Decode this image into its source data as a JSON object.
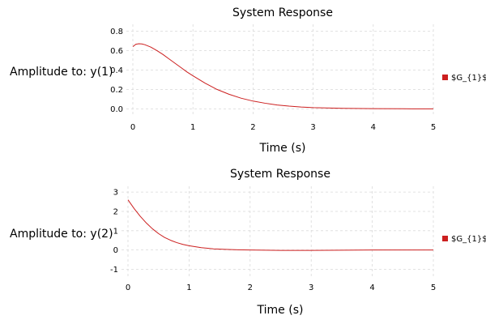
{
  "chart_data": [
    {
      "type": "line",
      "title": "System Response",
      "xlabel": "Time (s)",
      "ylabel": "Amplitude to: y(1)",
      "xlim": [
        0,
        5
      ],
      "ylim": [
        -0.08,
        0.87
      ],
      "xticks": [
        "0",
        "1",
        "2",
        "3",
        "4",
        "5"
      ],
      "yticks": [
        "0.0",
        "0.2",
        "0.4",
        "0.6",
        "0.8"
      ],
      "grid": true,
      "legend_position": "right",
      "series": [
        {
          "name": "$G_{1}$",
          "color": "#cc1f1f",
          "x": [
            0,
            0.05,
            0.1,
            0.15,
            0.2,
            0.3,
            0.4,
            0.5,
            0.6,
            0.7,
            0.8,
            0.9,
            1.0,
            1.2,
            1.4,
            1.6,
            1.8,
            2.0,
            2.2,
            2.4,
            2.6,
            2.8,
            3.0,
            3.5,
            4.0,
            4.5,
            5.0
          ],
          "y": [
            0.64,
            0.665,
            0.67,
            0.668,
            0.66,
            0.635,
            0.6,
            0.56,
            0.515,
            0.47,
            0.425,
            0.38,
            0.34,
            0.265,
            0.2,
            0.15,
            0.11,
            0.08,
            0.058,
            0.04,
            0.028,
            0.019,
            0.013,
            0.005,
            0.002,
            0.001,
            0.0
          ]
        }
      ]
    },
    {
      "type": "line",
      "title": "System Response",
      "xlabel": "Time (s)",
      "ylabel": "Amplitude to: y(2)",
      "xlim": [
        0,
        5
      ],
      "ylim": [
        -1.4,
        3.3
      ],
      "xticks": [
        "0",
        "1",
        "2",
        "3",
        "4",
        "5"
      ],
      "yticks": [
        "-1",
        "0",
        "1",
        "2",
        "3"
      ],
      "grid": true,
      "legend_position": "right",
      "series": [
        {
          "name": "$G_{1}$",
          "color": "#cc1f1f",
          "x": [
            0,
            0.1,
            0.2,
            0.3,
            0.4,
            0.5,
            0.6,
            0.7,
            0.8,
            0.9,
            1.0,
            1.2,
            1.4,
            1.6,
            1.8,
            2.0,
            2.5,
            3.0,
            3.5,
            4.0,
            4.5,
            5.0
          ],
          "y": [
            2.6,
            2.15,
            1.75,
            1.4,
            1.1,
            0.85,
            0.65,
            0.5,
            0.38,
            0.29,
            0.22,
            0.12,
            0.06,
            0.03,
            0.01,
            0.0,
            -0.02,
            -0.02,
            -0.01,
            0.0,
            0.0,
            0.0
          ]
        }
      ]
    }
  ]
}
